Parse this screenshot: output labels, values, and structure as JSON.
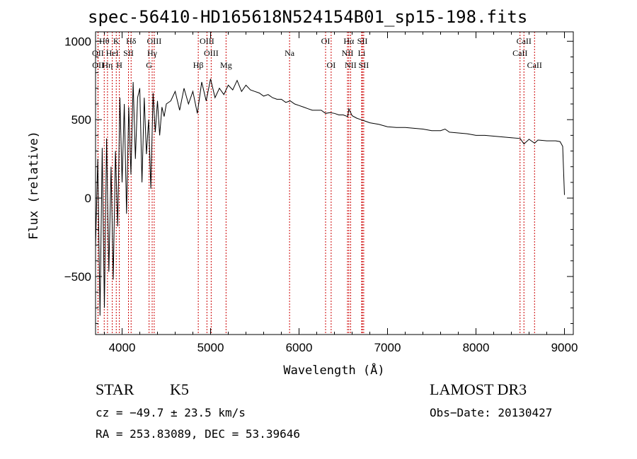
{
  "chart_data": {
    "type": "line",
    "title": "spec-56410-HD165618N524154B01_sp15-198.fits",
    "xlabel": "Wavelength (Å)",
    "ylabel": "Flux (relative)",
    "xlim": [
      3700,
      9100
    ],
    "ylim": [
      -870,
      1060
    ],
    "xticks": [
      4000,
      5000,
      6000,
      7000,
      8000,
      9000
    ],
    "yticks": [
      -500,
      0,
      500,
      1000
    ],
    "line_color": "#000000",
    "marker_color": "#cc0000",
    "series": [
      {
        "name": "flux",
        "x": [
          3700,
          3725,
          3750,
          3775,
          3800,
          3825,
          3850,
          3875,
          3900,
          3925,
          3950,
          3975,
          4000,
          4025,
          4050,
          4075,
          4100,
          4125,
          4150,
          4175,
          4200,
          4225,
          4250,
          4275,
          4300,
          4325,
          4350,
          4375,
          4400,
          4425,
          4450,
          4475,
          4500,
          4550,
          4600,
          4650,
          4700,
          4750,
          4800,
          4850,
          4900,
          4950,
          5000,
          5050,
          5100,
          5150,
          5200,
          5250,
          5300,
          5350,
          5400,
          5450,
          5500,
          5550,
          5600,
          5650,
          5700,
          5750,
          5800,
          5850,
          5900,
          5950,
          6000,
          6050,
          6100,
          6150,
          6200,
          6250,
          6300,
          6350,
          6400,
          6450,
          6500,
          6550,
          6563,
          6600,
          6650,
          6700,
          6750,
          6800,
          6900,
          7000,
          7100,
          7200,
          7300,
          7400,
          7500,
          7600,
          7650,
          7700,
          7800,
          7900,
          8000,
          8100,
          8200,
          8300,
          8400,
          8500,
          8542,
          8600,
          8662,
          8700,
          8800,
          8900,
          8950,
          8980,
          9000
        ],
        "values": [
          -310,
          250,
          -750,
          320,
          -700,
          380,
          -470,
          200,
          -520,
          300,
          -180,
          640,
          100,
          600,
          -100,
          580,
          150,
          740,
          250,
          640,
          700,
          100,
          640,
          280,
          500,
          60,
          670,
          420,
          620,
          400,
          580,
          520,
          600,
          620,
          680,
          560,
          700,
          600,
          680,
          540,
          740,
          620,
          760,
          640,
          700,
          660,
          720,
          690,
          750,
          680,
          720,
          690,
          680,
          670,
          650,
          660,
          640,
          630,
          630,
          610,
          620,
          600,
          590,
          580,
          570,
          560,
          560,
          560,
          540,
          545,
          540,
          530,
          530,
          520,
          570,
          525,
          510,
          500,
          490,
          480,
          470,
          455,
          450,
          450,
          445,
          440,
          430,
          430,
          440,
          420,
          415,
          410,
          400,
          400,
          395,
          390,
          385,
          380,
          345,
          375,
          350,
          370,
          365,
          365,
          360,
          330,
          20
        ]
      }
    ],
    "line_markers": [
      {
        "label": "Hθ",
        "wavelength": 3798,
        "row": 1
      },
      {
        "label": "OII",
        "wavelength": 3727,
        "row": 2
      },
      {
        "label": "OII",
        "wavelength": 3729,
        "row": 3
      },
      {
        "label": "K",
        "wavelength": 3934,
        "row": 1
      },
      {
        "label": "HeI",
        "wavelength": 3889,
        "row": 2
      },
      {
        "label": "Hη",
        "wavelength": 3835,
        "row": 3
      },
      {
        "label": "Hδ",
        "wavelength": 4102,
        "row": 1
      },
      {
        "label": "SII",
        "wavelength": 4072,
        "row": 2
      },
      {
        "label": "H",
        "wavelength": 3969,
        "row": 3
      },
      {
        "label": "OIII",
        "wavelength": 4363,
        "row": 1
      },
      {
        "label": "Hγ",
        "wavelength": 4340,
        "row": 2
      },
      {
        "label": "G",
        "wavelength": 4305,
        "row": 3
      },
      {
        "label": "OIII",
        "wavelength": 4959,
        "row": 1
      },
      {
        "label": "OIII",
        "wavelength": 5007,
        "row": 2
      },
      {
        "label": "Hβ",
        "wavelength": 4861,
        "row": 3
      },
      {
        "label": "Mg",
        "wavelength": 5175,
        "row": 3
      },
      {
        "label": "Na",
        "wavelength": 5893,
        "row": 2
      },
      {
        "label": "OI",
        "wavelength": 6300,
        "row": 1
      },
      {
        "label": "OI",
        "wavelength": 6363,
        "row": 3
      },
      {
        "label": "Hα",
        "wavelength": 6563,
        "row": 1
      },
      {
        "label": "SII",
        "wavelength": 6716,
        "row": 1
      },
      {
        "label": "NII",
        "wavelength": 6548,
        "row": 2
      },
      {
        "label": "Li",
        "wavelength": 6708,
        "row": 2
      },
      {
        "label": "NII",
        "wavelength": 6583,
        "row": 3
      },
      {
        "label": "SII",
        "wavelength": 6731,
        "row": 3
      },
      {
        "label": "CaII",
        "wavelength": 8542,
        "row": 1
      },
      {
        "label": "CaII",
        "wavelength": 8498,
        "row": 2
      },
      {
        "label": "CaII",
        "wavelength": 8662,
        "row": 3
      }
    ]
  },
  "info": {
    "class": "STAR",
    "subclass": "K5",
    "survey": "LAMOST DR3",
    "redshift": "cz = −49.7 ± 23.5 km/s",
    "obs_date": "Obs−Date: 20130427",
    "coords": "RA = 253.83089, DEC =  53.39646"
  }
}
